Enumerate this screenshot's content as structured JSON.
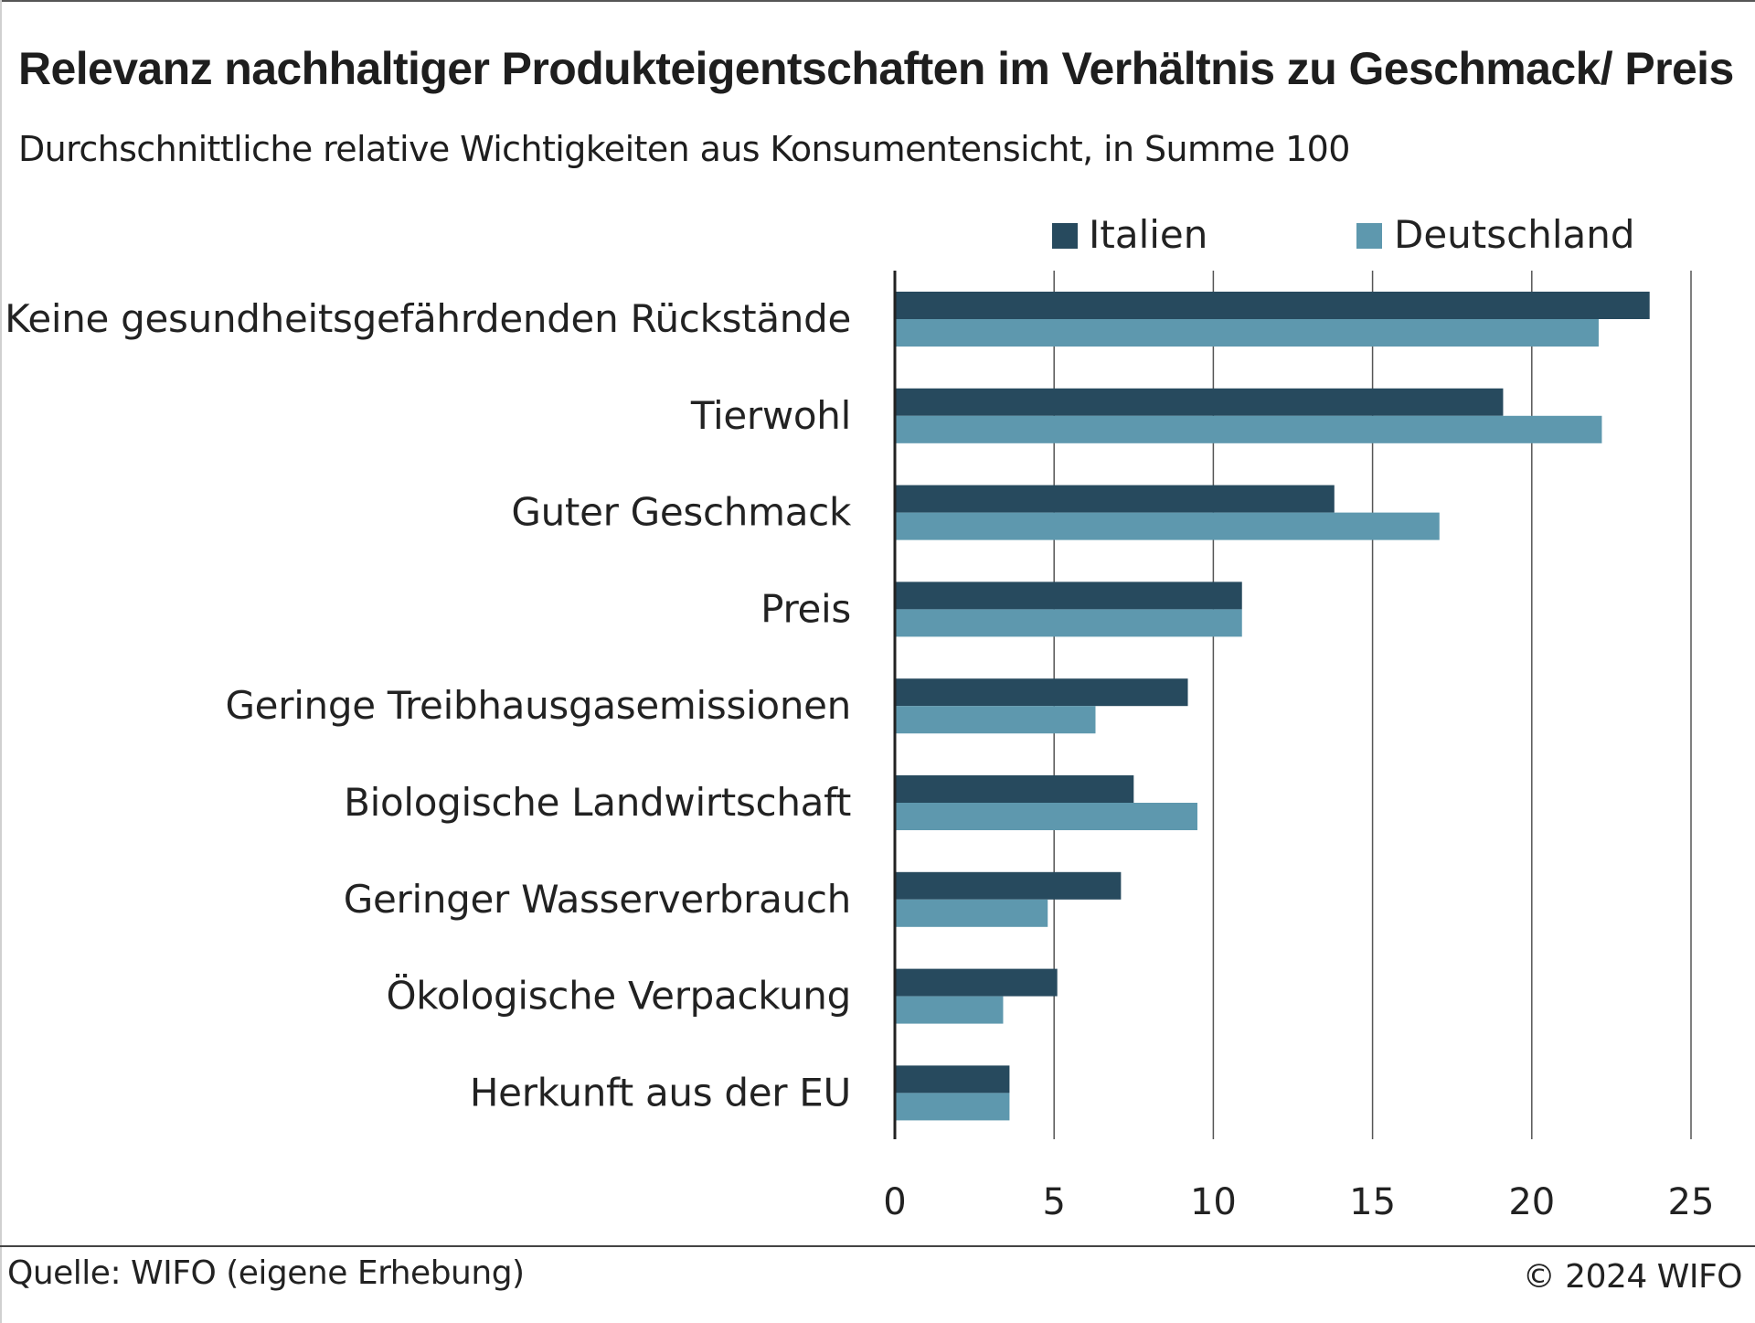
{
  "title": "Relevanz nachhaltiger Produkteigentschaften im Verhältnis zu Geschmack/ Preis",
  "subtitle": "Durchschnittliche relative Wichtigkeiten aus Konsumentensicht, in Summe 100",
  "source": "Quelle: WIFO (eigene Erhebung)",
  "copyright": "© 2024 WIFO",
  "colors": {
    "italien": "#274a5e",
    "deutschland": "#5e98ae",
    "grid": "#555555",
    "axis": "#222222"
  },
  "chart_data": {
    "type": "bar",
    "orientation": "horizontal",
    "categories": [
      "Keine gesundheitsgefährdenden Rückstände",
      "Tierwohl",
      "Guter Geschmack",
      "Preis",
      "Geringe Treibhausgasemissionen",
      "Biologische Landwirtschaft",
      "Geringer Wasserverbrauch",
      "Ökologische Verpackung",
      "Herkunft aus der EU"
    ],
    "series": [
      {
        "name": "Italien",
        "values": [
          23.7,
          19.1,
          13.8,
          10.9,
          9.2,
          7.5,
          7.1,
          5.1,
          3.6
        ]
      },
      {
        "name": "Deutschland",
        "values": [
          22.1,
          22.2,
          17.1,
          10.9,
          6.3,
          9.5,
          4.8,
          3.4,
          3.6
        ]
      }
    ],
    "xlim": [
      0,
      25
    ],
    "xticks": [
      "0",
      "5",
      "10",
      "15",
      "20",
      "25"
    ],
    "grid": true,
    "legend_position": "top-right"
  }
}
